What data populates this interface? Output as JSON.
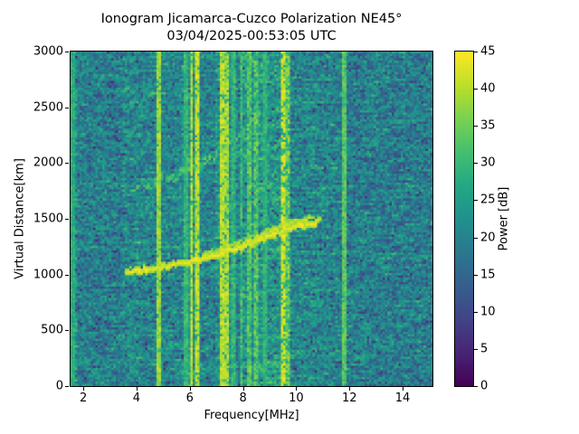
{
  "chart_data": {
    "type": "heatmap",
    "title": "Ionogram Jicamarca-Cuzco Polarization NE45°",
    "subtitle": "03/04/2025-00:53:05 UTC",
    "xlabel": "Frequency[MHz]",
    "ylabel": "Virtual Distance[km]",
    "xlim": [
      1.52,
      15.12
    ],
    "ylim": [
      0,
      3000
    ],
    "xticks": [
      2,
      4,
      6,
      8,
      10,
      12,
      14
    ],
    "yticks": [
      0,
      500,
      1000,
      1500,
      2000,
      2500,
      3000
    ],
    "grid": false,
    "colorbar": {
      "label": "Power [dB]",
      "min": 0,
      "max": 45,
      "ticks": [
        0,
        5,
        10,
        15,
        20,
        25,
        30,
        35,
        40,
        45
      ],
      "colormap": "viridis"
    },
    "colormap_stops": [
      [
        0.0,
        "#440154"
      ],
      [
        0.1,
        "#482475"
      ],
      [
        0.2,
        "#414487"
      ],
      [
        0.3,
        "#355f8d"
      ],
      [
        0.4,
        "#2a788e"
      ],
      [
        0.5,
        "#21918c"
      ],
      [
        0.6,
        "#22a884"
      ],
      [
        0.7,
        "#44bf70"
      ],
      [
        0.8,
        "#7ad151"
      ],
      [
        0.9,
        "#bddf26"
      ],
      [
        1.0,
        "#fde725"
      ]
    ],
    "noise": {
      "mean_db": 20.5,
      "speckle_db": 6.5,
      "streak_db": 5,
      "dark_dropout_prob": 0.04
    },
    "noise_bands": [
      {
        "f0": 1.52,
        "f1": 1.8,
        "boost": 2.5
      },
      {
        "f0": 1.8,
        "f1": 3.45,
        "boost": -1.0
      },
      {
        "f0": 3.45,
        "f1": 4.9,
        "boost": 0.5
      },
      {
        "f0": 5.7,
        "f1": 6.4,
        "boost": 2.5
      },
      {
        "f0": 7.0,
        "f1": 7.7,
        "boost": 2.5
      },
      {
        "f0": 8.0,
        "f1": 9.75,
        "boost": 3.5
      },
      {
        "f0": 9.75,
        "f1": 11.3,
        "boost": 0.5
      },
      {
        "f0": 11.9,
        "f1": 15.12,
        "boost": -1.0
      }
    ],
    "rfi_lines": [
      {
        "f": 1.58,
        "w": 0.1,
        "db": 30,
        "density": 0.45
      },
      {
        "f": 4.78,
        "w": 0.05,
        "db": 42,
        "density": 0.9
      },
      {
        "f": 5.8,
        "w": 0.05,
        "db": 34,
        "density": 0.5
      },
      {
        "f": 6.02,
        "w": 0.07,
        "db": 44,
        "density": 0.9
      },
      {
        "f": 6.21,
        "w": 0.07,
        "db": 44,
        "density": 0.85
      },
      {
        "f": 7.15,
        "w": 0.08,
        "db": 44,
        "density": 0.9
      },
      {
        "f": 7.36,
        "w": 0.07,
        "db": 43,
        "density": 0.8
      },
      {
        "f": 7.6,
        "w": 0.04,
        "db": 34,
        "density": 0.4
      },
      {
        "f": 7.9,
        "w": 0.04,
        "db": 36,
        "density": 0.45
      },
      {
        "f": 8.18,
        "w": 0.05,
        "db": 38,
        "density": 0.55
      },
      {
        "f": 8.42,
        "w": 0.06,
        "db": 38,
        "density": 0.6
      },
      {
        "f": 8.8,
        "w": 0.05,
        "db": 33,
        "density": 0.4
      },
      {
        "f": 9.48,
        "w": 0.12,
        "db": 45,
        "density": 0.75
      },
      {
        "f": 9.65,
        "w": 0.06,
        "db": 40,
        "density": 0.55
      },
      {
        "f": 11.76,
        "w": 0.06,
        "db": 37,
        "density": 0.9
      }
    ],
    "traces": [
      {
        "db": 45,
        "thickness_km": 40,
        "density": 0.85,
        "scatter_km": 14,
        "points": [
          [
            3.52,
            1030
          ],
          [
            4.0,
            1042
          ],
          [
            4.5,
            1058
          ],
          [
            5.0,
            1078
          ],
          [
            5.5,
            1100
          ],
          [
            6.0,
            1124
          ],
          [
            6.5,
            1152
          ],
          [
            7.0,
            1185
          ],
          [
            7.5,
            1222
          ],
          [
            8.0,
            1262
          ],
          [
            8.5,
            1308
          ],
          [
            9.0,
            1358
          ],
          [
            9.5,
            1405
          ],
          [
            10.0,
            1442
          ],
          [
            10.4,
            1458
          ],
          [
            10.7,
            1468
          ]
        ]
      },
      {
        "db": 43,
        "thickness_km": 30,
        "density": 0.6,
        "scatter_km": 12,
        "points": [
          [
            6.4,
            1175
          ],
          [
            7.0,
            1212
          ],
          [
            7.5,
            1252
          ],
          [
            8.0,
            1295
          ],
          [
            8.5,
            1345
          ],
          [
            9.0,
            1398
          ],
          [
            9.5,
            1448
          ],
          [
            10.0,
            1485
          ],
          [
            10.5,
            1505
          ],
          [
            10.95,
            1512
          ]
        ]
      },
      {
        "db": 36,
        "thickness_km": 40,
        "density": 0.45,
        "scatter_km": 28,
        "points": [
          [
            3.7,
            1755
          ],
          [
            4.2,
            1792
          ],
          [
            4.7,
            1832
          ],
          [
            5.2,
            1875
          ],
          [
            5.8,
            1928
          ],
          [
            6.3,
            1988
          ],
          [
            6.8,
            2055
          ],
          [
            7.3,
            2135
          ],
          [
            7.8,
            2235
          ],
          [
            8.2,
            2330
          ],
          [
            8.6,
            2425
          ]
        ]
      },
      {
        "db": 31,
        "thickness_km": 35,
        "density": 0.4,
        "scatter_km": 25,
        "points": [
          [
            3.45,
            2505
          ],
          [
            3.85,
            2545
          ],
          [
            4.25,
            2592
          ],
          [
            4.65,
            2648
          ]
        ]
      }
    ]
  }
}
